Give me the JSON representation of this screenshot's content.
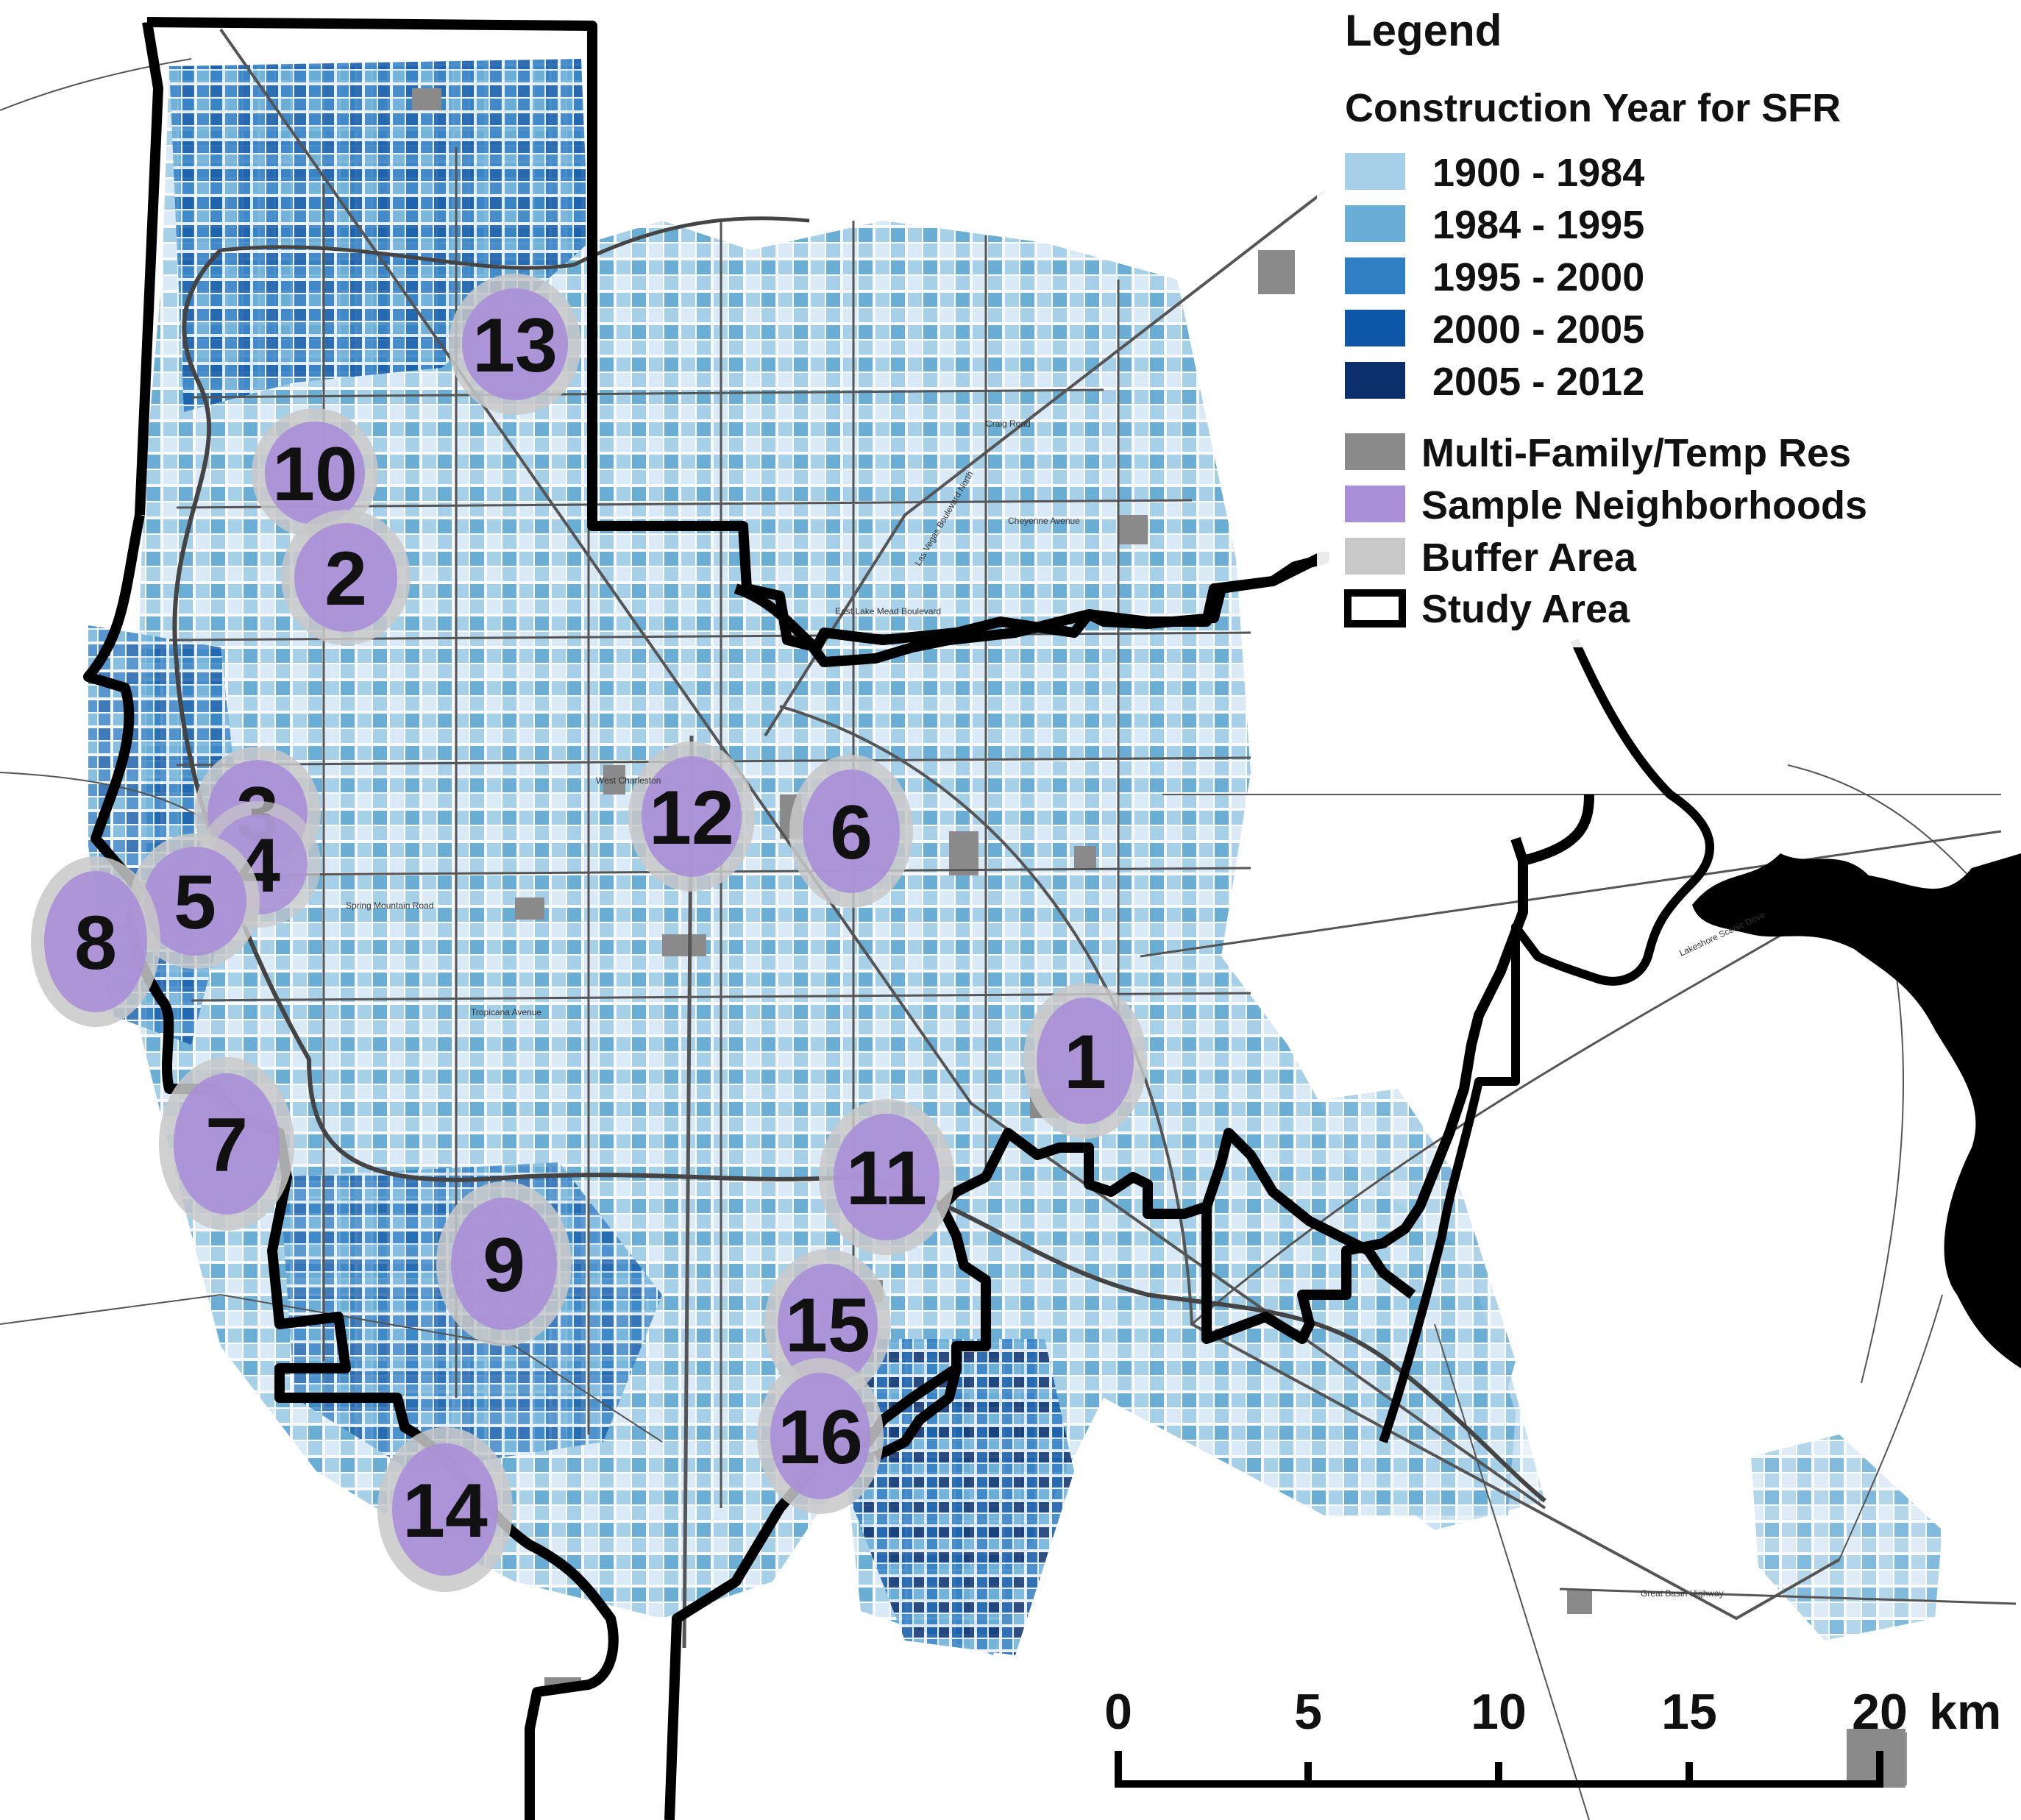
{
  "colors": {
    "sfr_1900_1984": "#a6cfe8",
    "sfr_1984_1995": "#6aaed6",
    "sfr_1995_2000": "#2f7dc2",
    "sfr_2000_2005": "#0f57a6",
    "sfr_2005_2012": "#0a2f6b",
    "multi_family": "#8a8a8a",
    "sample_neighborhood": "#a98fd8",
    "buffer": "#c8c8c8",
    "study_area": "#000000",
    "lake": "#000000"
  },
  "legend": {
    "title": "Legend",
    "subtitle": "Construction Year for SFR",
    "sfr_items": [
      {
        "label": "1900 - 1984",
        "color": "#a6cfe8"
      },
      {
        "label": "1984 - 1995",
        "color": "#6aaed6"
      },
      {
        "label": "1995 - 2000",
        "color": "#2f7dc2"
      },
      {
        "label": "2000 - 2005",
        "color": "#0f57a6"
      },
      {
        "label": "2005 - 2012",
        "color": "#0a2f6b"
      }
    ],
    "other_items": [
      {
        "label": "Multi-Family/Temp Res",
        "symbol": "multi-family-swatch"
      },
      {
        "label": "Sample Neighborhoods",
        "symbol": "sample-swatch"
      },
      {
        "label": "Buffer Area",
        "symbol": "buffer-swatch"
      },
      {
        "label": "Study Area",
        "symbol": "study-area-swatch"
      }
    ]
  },
  "neighborhoods": [
    "1",
    "2",
    "3",
    "4",
    "5",
    "6",
    "7",
    "8",
    "9",
    "10",
    "11",
    "12",
    "13",
    "14",
    "15",
    "16"
  ],
  "scale_bar": {
    "ticks": [
      "0",
      "5",
      "10",
      "15",
      "20"
    ],
    "unit": "km"
  },
  "road_labels": [
    "Craig Road",
    "Cheyenne Avenue",
    "West Charleston",
    "Spring Mountain Road",
    "Tropicana Avenue",
    "East Lake Mead Boulevard",
    "Las Vegas Boulevard North",
    "Lakeshore Scenic Drive",
    "Great Basin Highway"
  ]
}
